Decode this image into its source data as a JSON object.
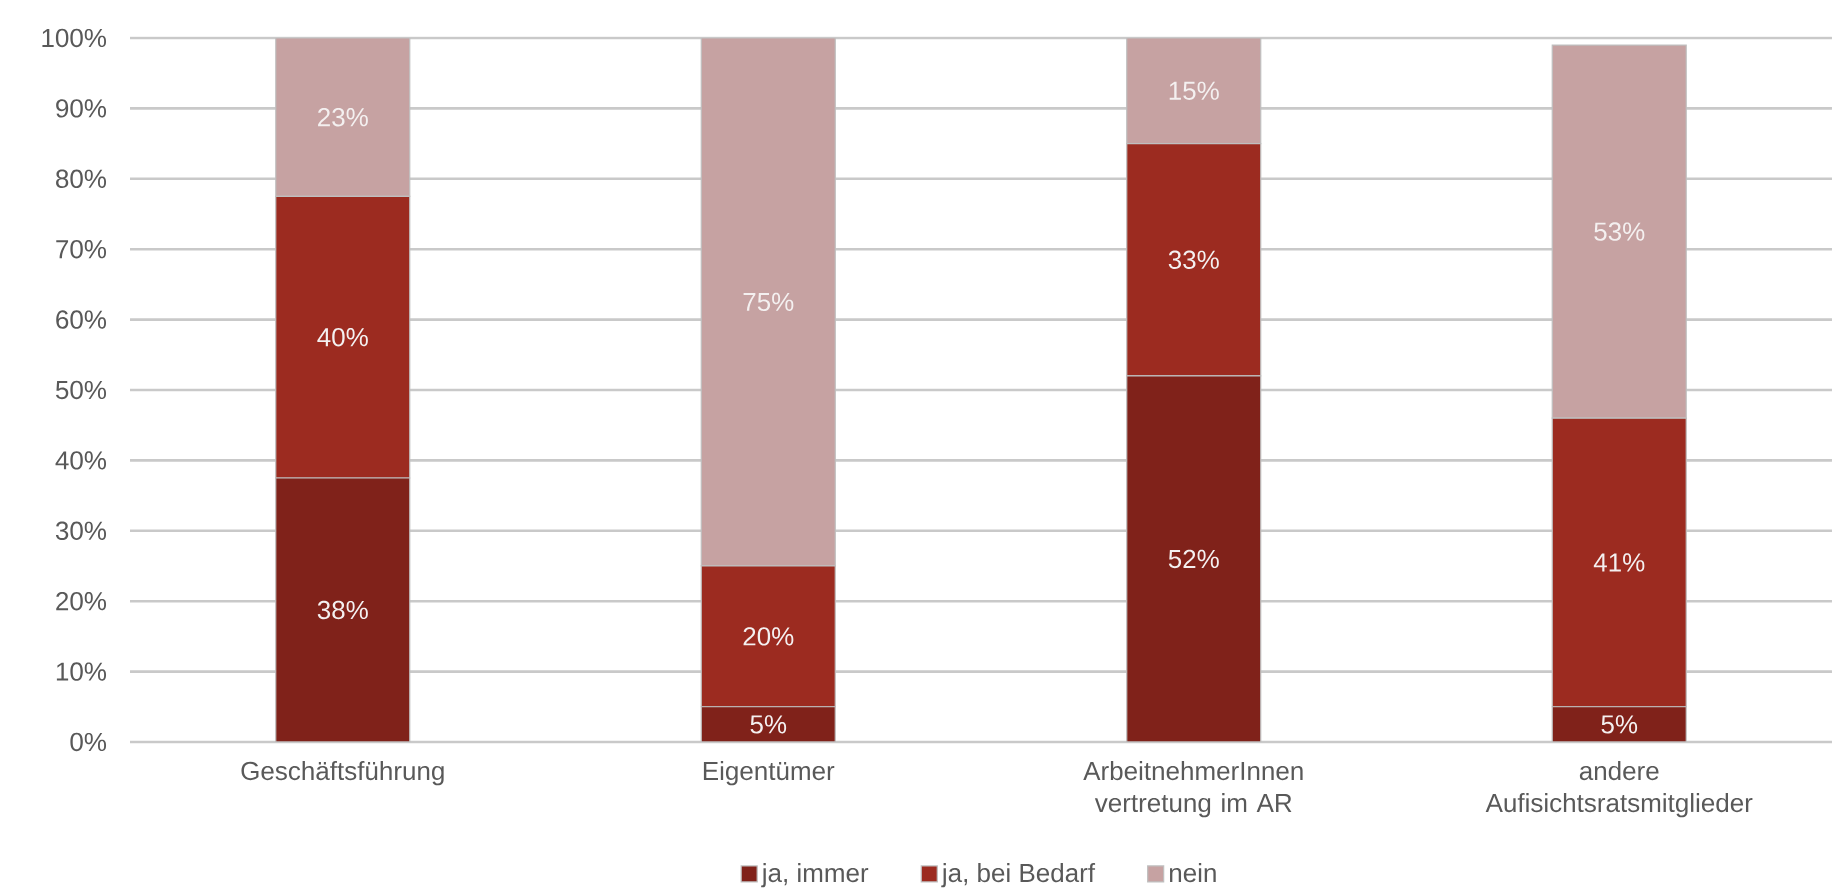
{
  "chart_data": {
    "type": "bar",
    "stacked": true,
    "categories": [
      "Geschäftsführung",
      "Eigentümer",
      "ArbeitnehmerInnen vertretung im AR",
      "andere Aufisichtsratsmitglieder"
    ],
    "series": [
      {
        "name": "ja, immer",
        "color": "#80221a",
        "values": [
          37.5,
          5,
          52,
          5
        ],
        "value_labels": [
          "38%",
          "5%",
          "52%",
          "5%"
        ]
      },
      {
        "name": "ja, bei Bedarf",
        "color": "#9c2b20",
        "values": [
          40,
          20,
          33,
          41
        ],
        "value_labels": [
          "40%",
          "20%",
          "33%",
          "41%"
        ]
      },
      {
        "name": "nein",
        "color": "#c6a2a2",
        "values": [
          22.5,
          75,
          15,
          53
        ],
        "value_labels": [
          "23%",
          "75%",
          "15%",
          "53%"
        ]
      }
    ],
    "ylim": [
      0,
      100
    ],
    "yticks": [
      {
        "value": 0,
        "label": "0%"
      },
      {
        "value": 10,
        "label": "10%"
      },
      {
        "value": 20,
        "label": "20%"
      },
      {
        "value": 30,
        "label": "30%"
      },
      {
        "value": 40,
        "label": "40%"
      },
      {
        "value": 50,
        "label": "50%"
      },
      {
        "value": 60,
        "label": "60%"
      },
      {
        "value": 70,
        "label": "70%"
      },
      {
        "value": 80,
        "label": "80%"
      },
      {
        "value": 90,
        "label": "90%"
      },
      {
        "value": 100,
        "label": "100%"
      }
    ],
    "grid": "y",
    "legend": "bottom"
  }
}
